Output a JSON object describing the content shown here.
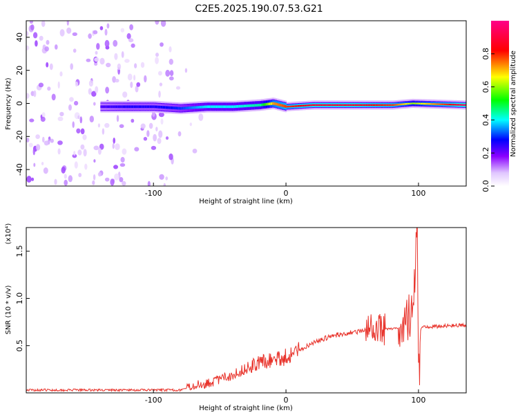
{
  "chart_data": [
    {
      "type": "heatmap",
      "title": "C2E5.2025.190.07.53.G21",
      "xlabel": "Height of straight line (km)",
      "ylabel": "Frequency (Hz)",
      "xlim": [
        -196,
        136
      ],
      "ylim": [
        -50,
        50
      ],
      "xticks": [
        -100,
        0,
        100
      ],
      "yticks": [
        40,
        20,
        0,
        -20,
        -40
      ],
      "colorbar": {
        "label": "Normalized spectral amplitude",
        "range": [
          0,
          1
        ],
        "ticks": [
          "0.0",
          "0.2",
          "0.4",
          "0.6",
          "0.8"
        ],
        "colors": [
          "#ffffff",
          "#d9b3ff",
          "#7a00ff",
          "#0000ff",
          "#00ffff",
          "#00ff00",
          "#ffff00",
          "#ff0000",
          "#ff00aa"
        ]
      },
      "ridge": [
        {
          "x": -140,
          "y": -2,
          "amp": 0.3
        },
        {
          "x": -120,
          "y": -2,
          "amp": 0.35
        },
        {
          "x": -100,
          "y": -2,
          "amp": 0.35
        },
        {
          "x": -80,
          "y": -3,
          "amp": 0.4
        },
        {
          "x": -60,
          "y": -2,
          "amp": 0.5
        },
        {
          "x": -40,
          "y": -2,
          "amp": 0.5
        },
        {
          "x": -20,
          "y": -1,
          "amp": 0.55
        },
        {
          "x": -10,
          "y": 0,
          "amp": 0.8
        },
        {
          "x": 0,
          "y": -2,
          "amp": 0.85
        },
        {
          "x": 20,
          "y": -1,
          "amp": 0.9
        },
        {
          "x": 50,
          "y": -1,
          "amp": 0.9
        },
        {
          "x": 80,
          "y": -1,
          "amp": 0.85
        },
        {
          "x": 95,
          "y": 0,
          "amp": 0.7
        },
        {
          "x": 136,
          "y": -1,
          "amp": 0.95
        }
      ]
    },
    {
      "type": "line",
      "xlabel": "Height of straight line (km)",
      "ylabel": "SNR (10 * v/v)",
      "multiplier": "(x10⁴)",
      "xlim": [
        -196,
        136
      ],
      "ylim": [
        0,
        1.75
      ],
      "xticks": [
        -100,
        0,
        100
      ],
      "yticks": [
        "0.5",
        "1.0",
        "1.5"
      ],
      "color": "#e8322a",
      "x": [
        -196,
        -180,
        -160,
        -140,
        -120,
        -100,
        -80,
        -75,
        -70,
        -60,
        -50,
        -40,
        -30,
        -20,
        -10,
        0,
        10,
        20,
        30,
        40,
        50,
        60,
        65,
        70,
        80,
        88,
        92,
        96,
        99,
        100,
        102,
        110,
        120,
        136
      ],
      "y": [
        0.03,
        0.03,
        0.03,
        0.03,
        0.03,
        0.03,
        0.03,
        0.05,
        0.08,
        0.1,
        0.14,
        0.2,
        0.26,
        0.32,
        0.35,
        0.38,
        0.45,
        0.53,
        0.58,
        0.62,
        0.64,
        0.66,
        0.67,
        0.67,
        0.68,
        0.7,
        0.8,
        0.85,
        1.75,
        0.05,
        0.7,
        0.7,
        0.71,
        0.72
      ]
    }
  ]
}
